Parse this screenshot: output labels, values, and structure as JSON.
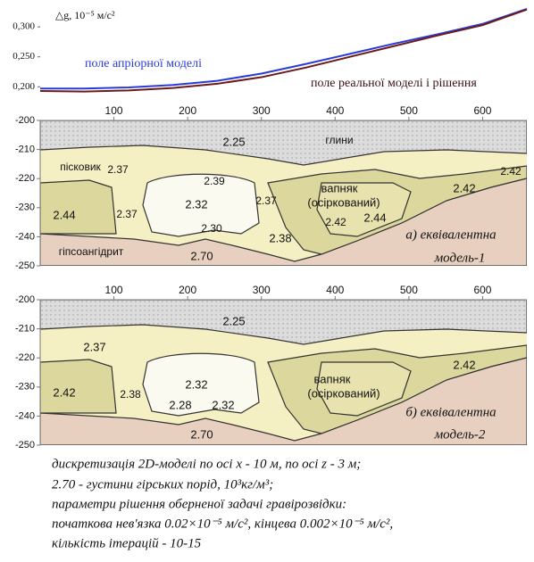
{
  "chart_data": [
    {
      "type": "line",
      "ylabel": "△g, 10⁻⁵ м/с²",
      "x": [
        0,
        60,
        120,
        180,
        240,
        300,
        360,
        420,
        480,
        540,
        600,
        660
      ],
      "series": [
        {
          "name": "поле апріорної моделі",
          "color": "#2a3ad8",
          "values": [
            0.197,
            0.197,
            0.199,
            0.203,
            0.21,
            0.222,
            0.238,
            0.255,
            0.272,
            0.288,
            0.305,
            0.33
          ]
        },
        {
          "name": "поле реальної моделі і рішення",
          "color": "#6b1a1a",
          "values": [
            0.193,
            0.192,
            0.194,
            0.198,
            0.205,
            0.216,
            0.232,
            0.25,
            0.268,
            0.286,
            0.303,
            0.329
          ]
        }
      ],
      "xlim": [
        0,
        660
      ],
      "ylim": [
        0.19,
        0.33
      ],
      "yticks": [
        {
          "value": 0.2,
          "label": "0,200"
        },
        {
          "value": 0.25,
          "label": "0,250"
        },
        {
          "value": 0.3,
          "label": "0,300"
        }
      ]
    },
    {
      "type": "section",
      "xlim": [
        0,
        660
      ],
      "ylim": [
        -250,
        -200
      ],
      "xticks": [
        100,
        200,
        300,
        400,
        500,
        600
      ],
      "yticks": [
        -200,
        -210,
        -220,
        -230,
        -240,
        -250
      ],
      "labels": [
        "2.25",
        "глини",
        "пісковик",
        "2.37",
        "2.39",
        "2.32",
        "2.37",
        "2.30",
        "2.37",
        "вапняк",
        "(осірк­ований)",
        "2.42",
        "2.44",
        "2.42",
        "2.42",
        "2.44",
        "2.38",
        "гіпсоангідрит",
        "2.70",
        "а) еквівалентна",
        "модель-1"
      ]
    },
    {
      "type": "section",
      "xlim": [
        0,
        660
      ],
      "ylim": [
        -250,
        -200
      ],
      "xticks": [
        100,
        200,
        300,
        400,
        500,
        600
      ],
      "yticks": [
        -200,
        -210,
        -220,
        -230,
        -240,
        -250
      ],
      "labels": [
        "2.25",
        "2.37",
        "2.32",
        "2.38",
        "2.28",
        "2.32",
        "вапняк",
        "(осірк­ований)",
        "2.42",
        "2.42",
        "2.70",
        "б) еквівалентна",
        "модель-2"
      ]
    }
  ],
  "caption": [
    "дискретизація 2D-моделі по осі x - 10 м, по осі z - 3 м;",
    "2.70 - густини гірських порід,  10³кг/м³;",
    "параметри рішення оберненої задачі гравірозвідки:",
    "початкова нев'язка 0.02×10⁻⁵ м/с², кінцева 0.002×10⁻⁵ м/с²,",
    "кількість ітерацій - 10-15"
  ]
}
